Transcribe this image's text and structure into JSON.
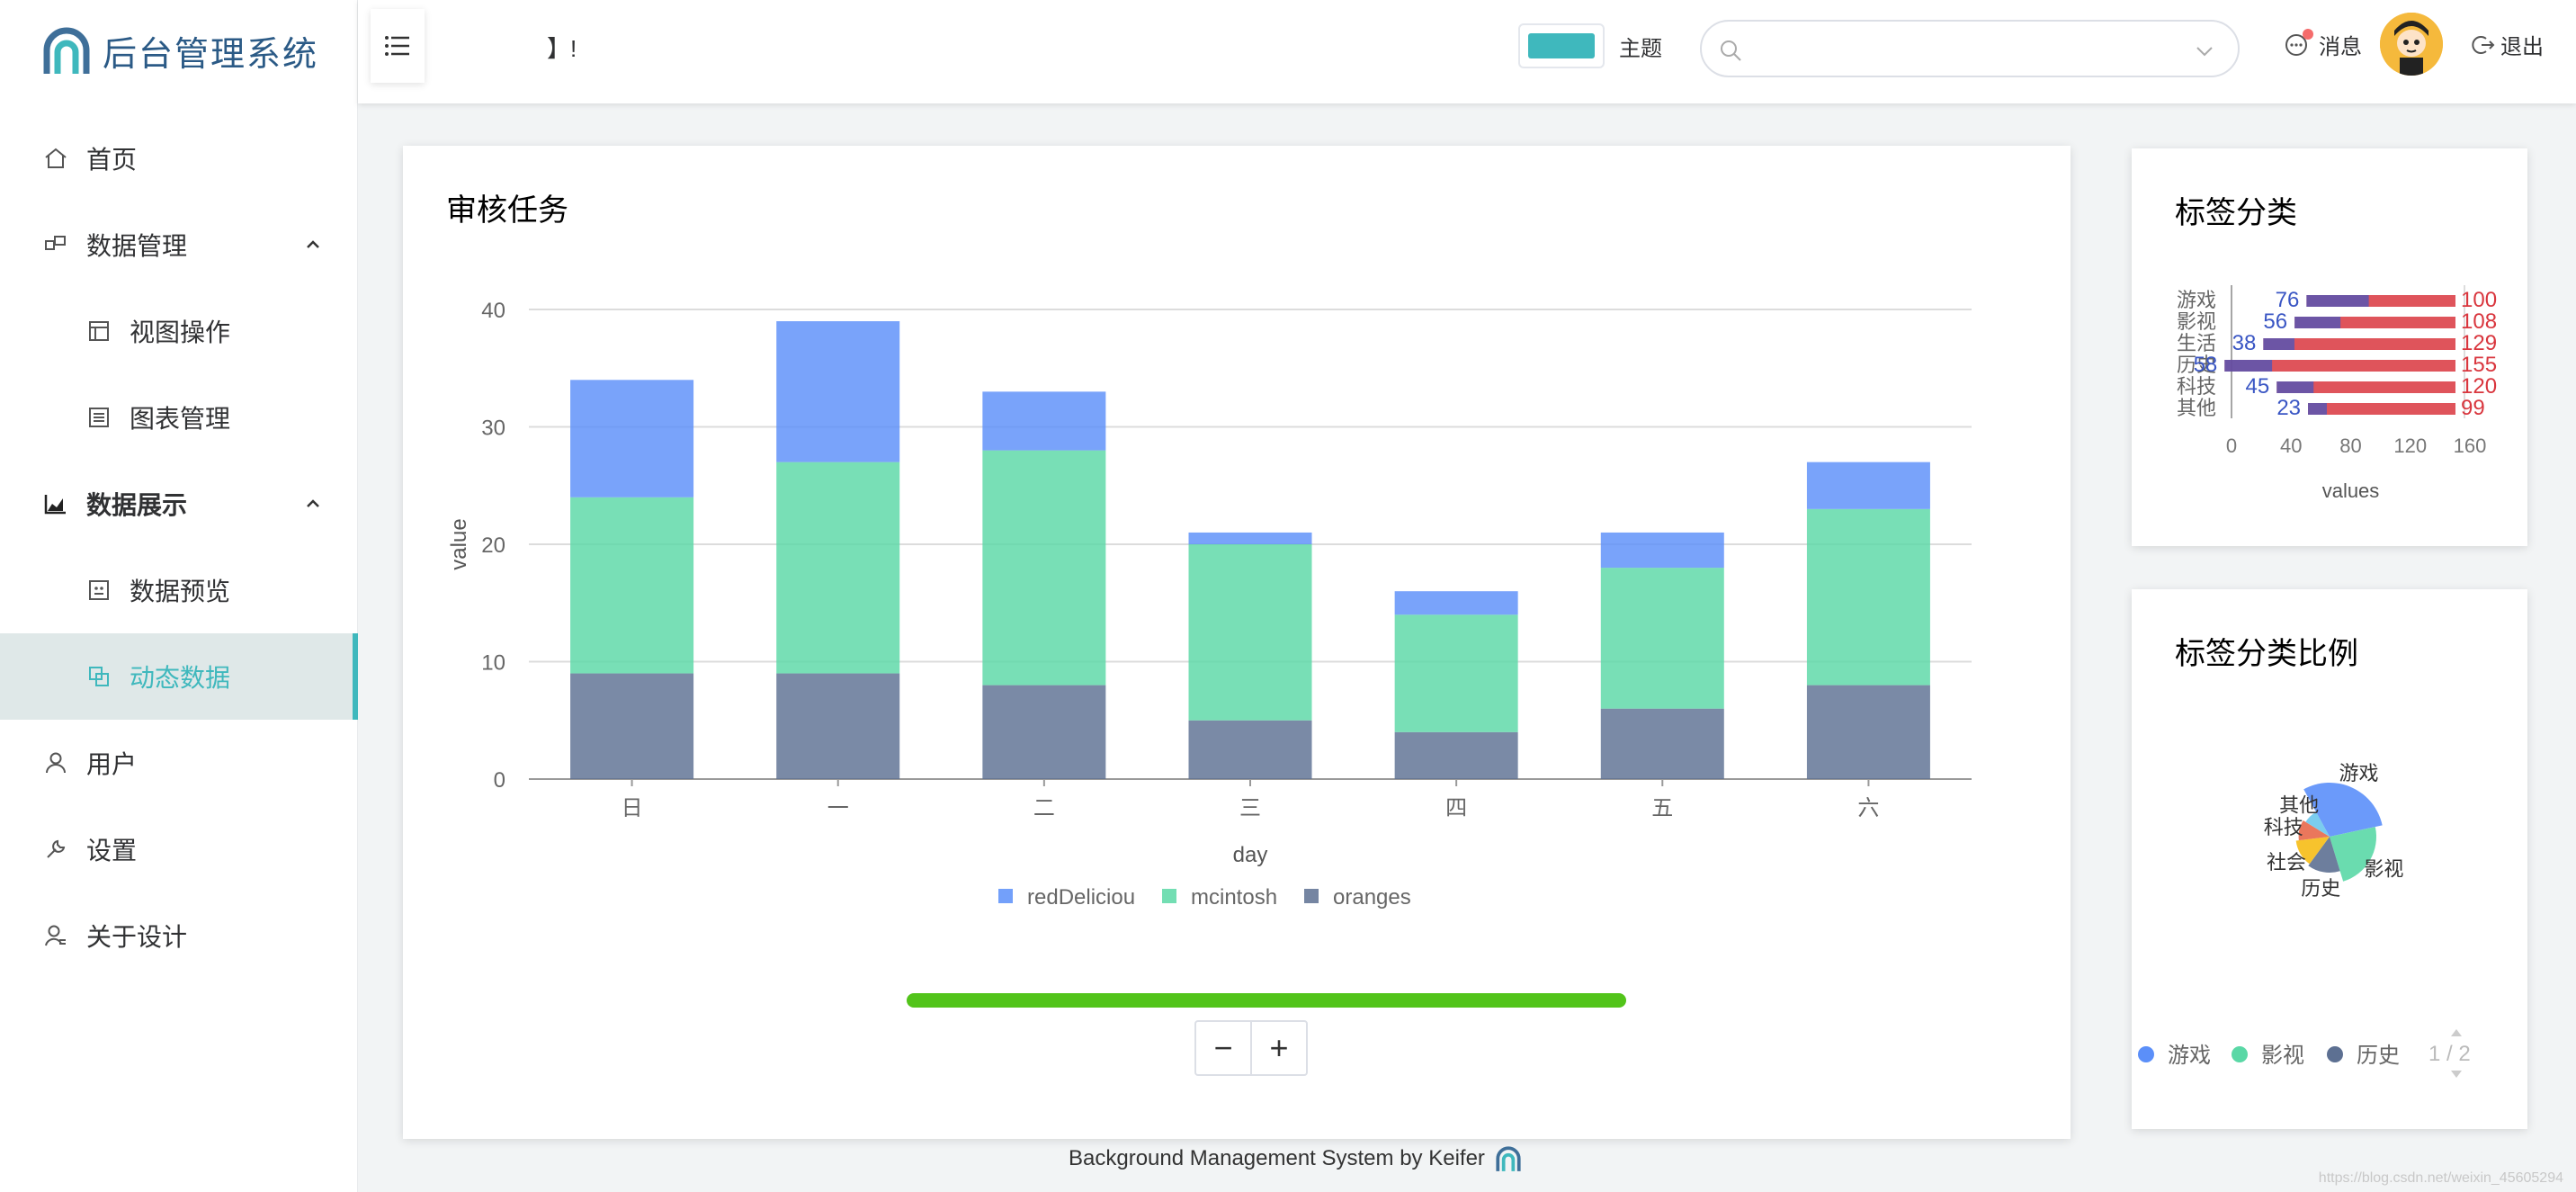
{
  "app": {
    "title": "后台管理系统"
  },
  "sidebar": {
    "items": [
      {
        "label": "首页",
        "icon": "home-icon"
      },
      {
        "label": "数据管理",
        "icon": "data-management-icon",
        "expanded": true
      },
      {
        "label": "视图操作",
        "icon": "view-icon"
      },
      {
        "label": "图表管理",
        "icon": "chart-list-icon"
      },
      {
        "label": "数据展示",
        "icon": "bar-chart-icon",
        "expanded": true
      },
      {
        "label": "数据预览",
        "icon": "preview-icon"
      },
      {
        "label": "动态数据",
        "icon": "dynamic-data-icon",
        "active": true
      },
      {
        "label": "用户",
        "icon": "user-icon"
      },
      {
        "label": "设置",
        "icon": "wrench-icon"
      },
      {
        "label": "关于设计",
        "icon": "about-icon"
      }
    ]
  },
  "header": {
    "welcome": "】!",
    "theme_label": "主题",
    "theme_color": "#3fb8bd",
    "search_placeholder": "",
    "messages_label": "消息",
    "logout_label": "退出"
  },
  "audit_card": {
    "title": "审核任务"
  },
  "tag_card": {
    "title": "标签分类"
  },
  "pie_card": {
    "title": "标签分类比例",
    "pager": "1 / 2"
  },
  "footer": {
    "text": "Background Management System by Keifer"
  },
  "watermark": "https://blog.csdn.net/weixin_45605294",
  "colors": {
    "accent": "#3fb8bd",
    "blue": "#5b8ff9",
    "green": "#5ad8a6",
    "slate": "#5d7092",
    "red": "#d9363e",
    "progress": "#52c41a"
  },
  "chart_data": [
    {
      "type": "bar",
      "stacked": true,
      "categories": [
        "日",
        "一",
        "二",
        "三",
        "四",
        "五",
        "六"
      ],
      "xlabel": "day",
      "ylabel": "value",
      "ylim": [
        0,
        40
      ],
      "yticks": [
        0,
        10,
        20,
        30,
        40
      ],
      "grid": true,
      "legend": "bottom",
      "series": [
        {
          "name": "oranges",
          "values": [
            9,
            9,
            8,
            5,
            4,
            6,
            8
          ],
          "color": "#5d7092"
        },
        {
          "name": "mcintosh",
          "values": [
            15,
            18,
            20,
            15,
            10,
            12,
            15
          ],
          "color": "#5ad8a6"
        },
        {
          "name": "redDeliciou",
          "values": [
            10,
            12,
            5,
            1,
            2,
            3,
            4
          ],
          "color": "#5b8ff9"
        }
      ]
    },
    {
      "type": "bar",
      "orientation": "horizontal",
      "categories": [
        "游戏",
        "影视",
        "生活",
        "历史",
        "科技",
        "其他"
      ],
      "xlabel": "values",
      "xlim": [
        0,
        160
      ],
      "xticks": [
        0,
        40,
        80,
        120,
        160
      ],
      "series": [
        {
          "values": [
            76,
            56,
            38,
            58,
            45,
            23
          ],
          "color": "#3a56c4"
        },
        {
          "values": [
            100,
            108,
            129,
            155,
            120,
            99
          ],
          "color": "#d9363e"
        }
      ]
    },
    {
      "type": "pie",
      "rose": true,
      "categories": [
        "游戏",
        "影视",
        "历史",
        "社会",
        "科技",
        "其他"
      ],
      "values": [
        50,
        40,
        25,
        22,
        18,
        14
      ],
      "colors": [
        "#5b8ff9",
        "#5ad8a6",
        "#5d7092",
        "#f6bd16",
        "#e8684a",
        "#6dc8ec"
      ],
      "legend_visible": [
        "游戏",
        "影视",
        "历史"
      ]
    }
  ]
}
